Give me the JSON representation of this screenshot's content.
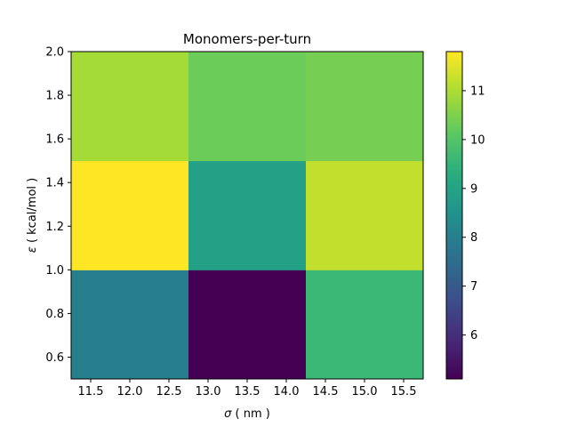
{
  "chart_data": {
    "type": "heatmap",
    "title": "Monomers-per-turn",
    "xlabel_symbol": "σ",
    "xlabel_unit": "( nm )",
    "ylabel_symbol": "ε",
    "ylabel_unit": "( kcal/mol )",
    "x_edges": [
      11.25,
      12.75,
      14.25,
      15.75
    ],
    "y_edges": [
      0.5,
      1.0,
      1.5,
      2.0
    ],
    "xlim": [
      11.25,
      15.75
    ],
    "ylim": [
      0.5,
      2.0
    ],
    "x_ticks": [
      "11.5",
      "12.0",
      "12.5",
      "13.0",
      "13.5",
      "14.0",
      "14.5",
      "15.0",
      "15.5"
    ],
    "y_ticks": [
      "0.6",
      "0.8",
      "1.0",
      "1.2",
      "1.4",
      "1.6",
      "1.8",
      "2.0"
    ],
    "values": [
      [
        8.0,
        5.1,
        9.6
      ],
      [
        11.8,
        8.9,
        11.2
      ],
      [
        10.9,
        10.3,
        10.4
      ]
    ],
    "colorbar": {
      "colormap": "viridis",
      "vmin": 5.1,
      "vmax": 11.8,
      "ticks": [
        "6",
        "7",
        "8",
        "9",
        "10",
        "11"
      ]
    },
    "grid": false
  }
}
